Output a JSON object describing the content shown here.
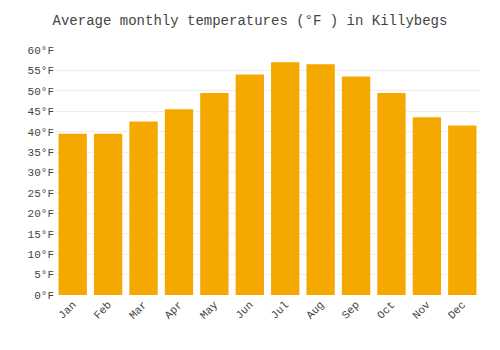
{
  "chart_data": {
    "type": "bar",
    "title": "Average monthly temperatures (°F ) in Killybegs",
    "categories": [
      "Jan",
      "Feb",
      "Mar",
      "Apr",
      "May",
      "Jun",
      "Jul",
      "Aug",
      "Sep",
      "Oct",
      "Nov",
      "Dec"
    ],
    "values": [
      39.5,
      39.5,
      42.5,
      45.5,
      49.5,
      54.0,
      57.0,
      56.5,
      53.5,
      49.5,
      43.5,
      41.5
    ],
    "color": "#F5A800",
    "ylim": [
      0,
      60
    ],
    "yticks": [
      {
        "value": 0,
        "label": "0°F"
      },
      {
        "value": 5,
        "label": "5°F"
      },
      {
        "value": 10,
        "label": "10°F"
      },
      {
        "value": 15,
        "label": "15°F"
      },
      {
        "value": 20,
        "label": "20°F"
      },
      {
        "value": 25,
        "label": "25°F"
      },
      {
        "value": 30,
        "label": "30°F"
      },
      {
        "value": 35,
        "label": "35°F"
      },
      {
        "value": 40,
        "label": "40°F"
      },
      {
        "value": 45,
        "label": "45°F"
      },
      {
        "value": 50,
        "label": "50°F"
      },
      {
        "value": 55,
        "label": "55°F"
      },
      {
        "value": 60,
        "label": "60°F"
      }
    ],
    "grid": true
  }
}
